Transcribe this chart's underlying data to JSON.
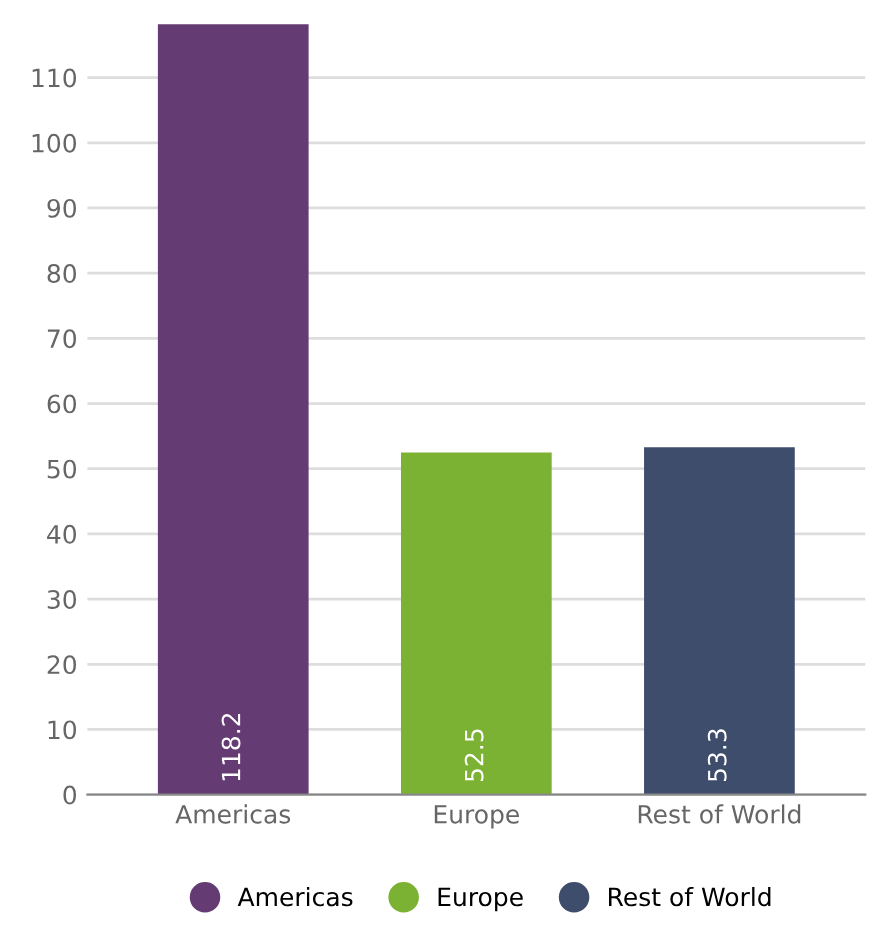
{
  "chart_data": {
    "type": "bar",
    "categories": [
      "Americas",
      "Europe",
      "Rest of World"
    ],
    "series": [
      {
        "name": "Americas",
        "color": "#643b73",
        "values": [
          118.2,
          null,
          null
        ]
      },
      {
        "name": "Europe",
        "color": "#7cb233",
        "values": [
          null,
          52.5,
          null
        ]
      },
      {
        "name": "Rest of World",
        "color": "#3e4d6b",
        "values": [
          null,
          null,
          53.3
        ]
      }
    ],
    "ylim": [
      0,
      119
    ],
    "yticks": [
      0,
      10,
      20,
      30,
      40,
      50,
      60,
      70,
      80,
      90,
      100,
      110
    ],
    "grid": "y",
    "legend": "bottom",
    "data_labels": true
  }
}
